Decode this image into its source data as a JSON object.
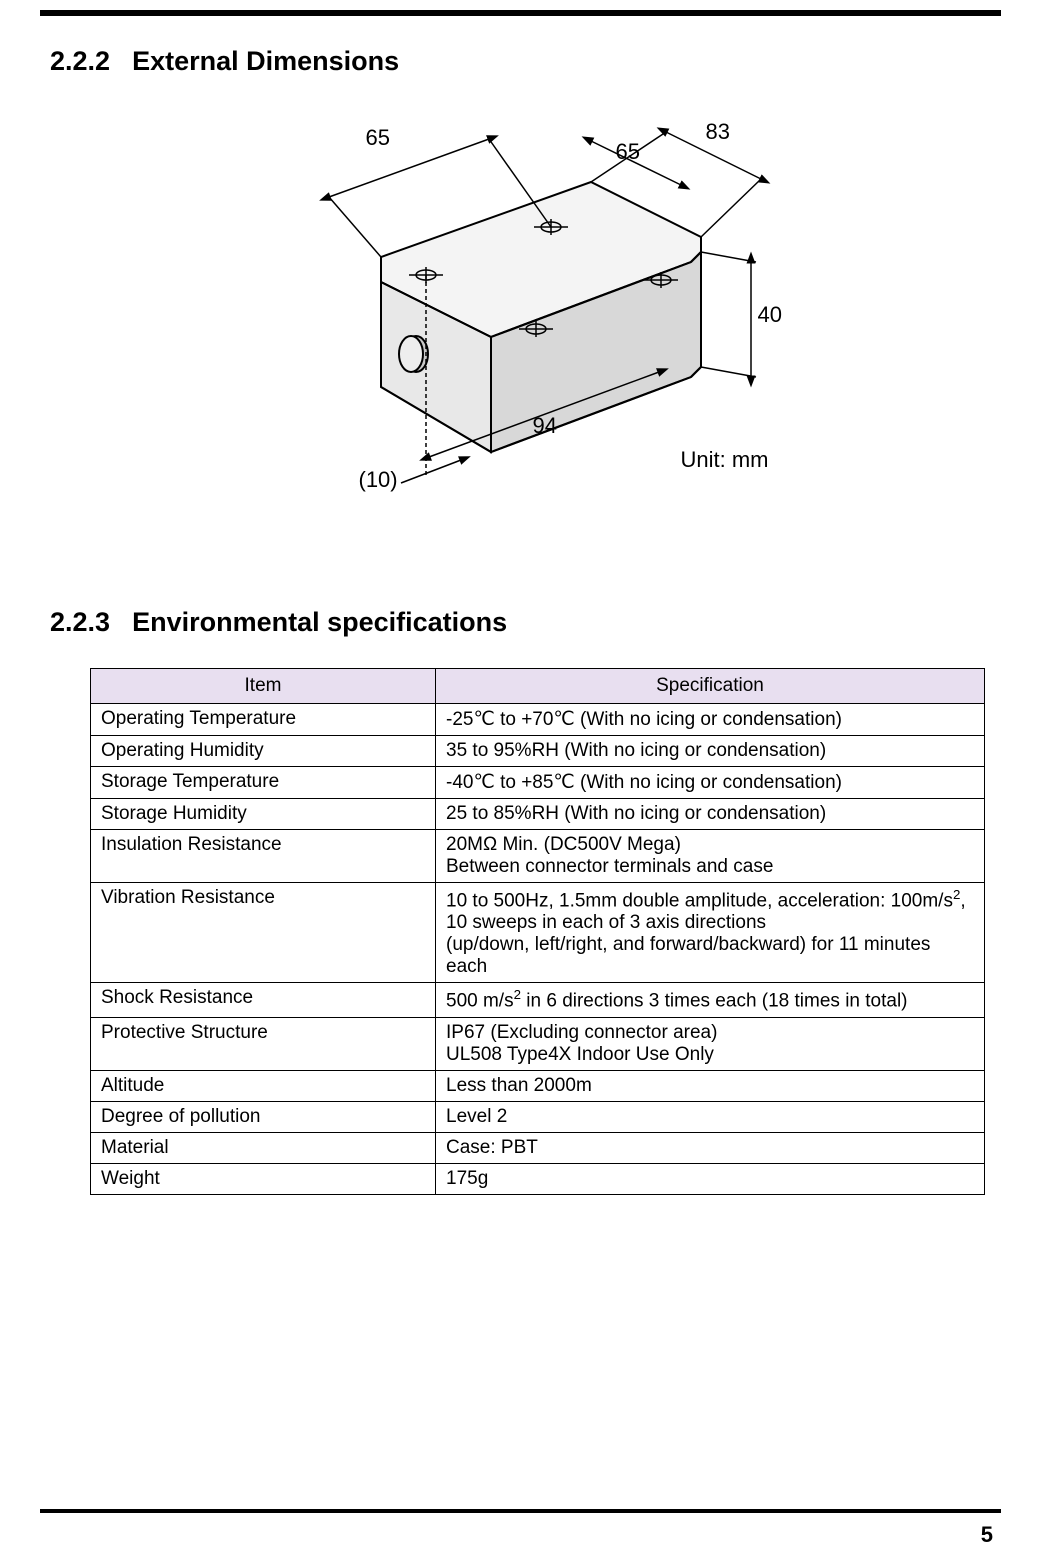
{
  "page_number": "5",
  "sections": {
    "dimensions": {
      "number": "2.2.2",
      "title": "External Dimensions",
      "unit_label": "Unit: mm",
      "dims": {
        "d65a": "65",
        "d65b": "65",
        "d83": "83",
        "d40": "40",
        "d94": "94",
        "d10": "(10)"
      }
    },
    "env": {
      "number": "2.2.3",
      "title": "Environmental specifications",
      "headers": {
        "item": "Item",
        "spec": "Specification"
      },
      "rows": [
        {
          "item": "Operating Temperature",
          "spec": "-25℃ to +70℃ (With no icing or condensation)"
        },
        {
          "item": "Operating Humidity",
          "spec": "35 to 95%RH (With no icing or condensation)"
        },
        {
          "item": "Storage Temperature",
          "spec": "-40℃ to +85℃ (With no icing or condensation)"
        },
        {
          "item": "Storage Humidity",
          "spec": "25 to 85%RH (With no icing or condensation)"
        },
        {
          "item": "Insulation Resistance",
          "spec": "20MΩ Min. (DC500V Mega)\nBetween connector terminals and case"
        },
        {
          "item": "Vibration Resistance",
          "spec": "10 to 500Hz, 1.5mm double amplitude, acceleration: 100m/s²,\n10 sweeps in each of 3 axis directions\n(up/down, left/right, and forward/backward) for 11 minutes each"
        },
        {
          "item": "Shock Resistance",
          "spec": "500 m/s² in 6 directions 3 times each (18 times in total)"
        },
        {
          "item": "Protective Structure",
          "spec": "IP67 (Excluding connector area)\nUL508 Type4X Indoor Use Only"
        },
        {
          "item": "Altitude",
          "spec": "Less than 2000m"
        },
        {
          "item": "Degree of pollution",
          "spec": "Level 2"
        },
        {
          "item": "Material",
          "spec": "Case: PBT"
        },
        {
          "item": "Weight",
          "spec": "175g"
        }
      ]
    }
  },
  "colors": {
    "header_bg": "#e8dff0",
    "border": "#000000",
    "text": "#000000",
    "device_fill": "#ffffff",
    "device_shade": "#d0d0d0"
  }
}
